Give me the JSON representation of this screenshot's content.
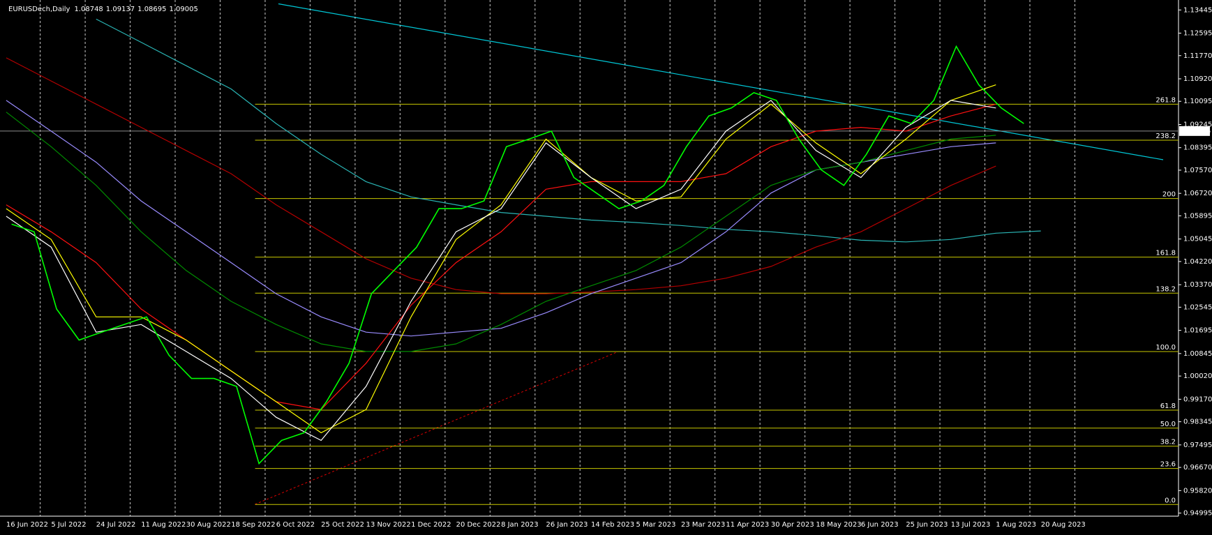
{
  "chart_data": {
    "type": "candlestick",
    "symbol": "EURUSDech,Daily",
    "ohlc": {
      "open": 1.08748,
      "high": 1.09137,
      "low": 1.08695,
      "close": 1.09005
    },
    "categories": [
      "16 Jun 2022",
      "5 Jul 2022",
      "24 Jul 2022",
      "11 Aug 2022",
      "30 Aug 2022",
      "18 Sep 2022",
      "6 Oct 2022",
      "25 Oct 2022",
      "13 Nov 2022",
      "1 Dec 2022",
      "20 Dec 2022",
      "8 Jan 2023",
      "26 Jan 2023",
      "14 Feb 2023",
      "5 Mar 2023",
      "23 Mar 2023",
      "11 Apr 2023",
      "30 Apr 2023",
      "18 May 2023",
      "6 Jun 2023",
      "25 Jun 2023",
      "13 Jul 2023",
      "1 Aug 2023",
      "20 Aug 2023"
    ],
    "closes": {
      "color": "#00ff00",
      "values": [
        1.0559,
        1.0531,
        1.0248,
        1.0134,
        1.0163,
        1.0191,
        1.0219,
        1.0078,
        0.9993,
        0.9993,
        0.9964,
        0.9681,
        0.9766,
        0.9794,
        0.9908,
        1.0049,
        1.0304,
        1.0389,
        1.0474,
        1.0616,
        1.0616,
        1.0644,
        1.0843,
        1.0871,
        1.09,
        1.073,
        1.0673,
        1.0616,
        1.0644,
        1.0701,
        1.0843,
        1.0956,
        1.0985,
        1.1041,
        1.1013,
        1.0871,
        1.0758,
        1.0701,
        1.0815,
        1.0956,
        1.0928,
        1.1013,
        1.1211,
        1.107,
        1.0985,
        1.0928
      ]
    },
    "series": [
      {
        "color": "#2ab4b4",
        "values": [
          null,
          null,
          1.1311,
          1.1226,
          1.114,
          1.1055,
          1.0928,
          1.0815,
          1.0715,
          1.0659,
          1.063,
          1.0602,
          1.0588,
          1.0574,
          1.0565,
          1.0554,
          1.054,
          1.0531,
          1.0517,
          1.05,
          1.0494,
          1.0503,
          1.0526,
          1.0534
        ]
      },
      {
        "color": "#b40000",
        "values": [
          1.1169,
          1.1084,
          1.0999,
          1.0914,
          1.0829,
          1.0744,
          1.063,
          1.0531,
          1.0432,
          1.0361,
          1.0319,
          1.0304,
          1.0304,
          1.031,
          1.0319,
          1.0333,
          1.0361,
          1.0404,
          1.0475,
          1.0531,
          1.0616,
          1.0701,
          1.0772,
          null
        ]
      },
      {
        "color": "#9a8cff",
        "values": [
          1.1013,
          1.09,
          1.0786,
          1.0644,
          1.0531,
          1.0418,
          1.0304,
          1.0219,
          1.0163,
          1.0149,
          1.0163,
          1.0177,
          1.0234,
          1.0304,
          1.0361,
          1.0418,
          1.0531,
          1.0673,
          1.0758,
          1.0786,
          1.0815,
          1.0843,
          1.0857,
          null
        ]
      },
      {
        "color": "#008c00",
        "values": [
          1.097,
          1.0843,
          1.0701,
          1.0531,
          1.0389,
          1.0276,
          1.0191,
          1.012,
          1.0092,
          1.0092,
          1.012,
          1.0191,
          1.0276,
          1.0333,
          1.0389,
          1.0475,
          1.0588,
          1.0701,
          1.0758,
          1.0786,
          1.0829,
          1.0871,
          1.0885,
          null
        ]
      },
      {
        "color": "#ff1010",
        "values": [
          1.063,
          1.0531,
          1.0418,
          1.0248,
          1.0134,
          1.0021,
          0.9908,
          0.9879,
          1.0049,
          1.0262,
          1.0418,
          1.0531,
          1.0687,
          1.0715,
          1.0715,
          1.0715,
          1.0744,
          1.0843,
          1.09,
          1.0914,
          1.09,
          1.0956,
          1.0999,
          null
        ]
      },
      {
        "color": "#ffff00",
        "values": [
          1.0616,
          1.0503,
          1.0219,
          1.0219,
          1.0134,
          1.0021,
          0.9908,
          0.9794,
          0.9879,
          1.0219,
          1.0503,
          1.063,
          1.0871,
          1.073,
          1.0644,
          1.0659,
          1.0871,
          1.0999,
          1.0857,
          1.0744,
          1.0871,
          1.1013,
          1.107,
          null
        ]
      },
      {
        "color": "#ffffff",
        "values": [
          1.0588,
          1.0475,
          1.0163,
          1.0191,
          1.0092,
          0.9993,
          0.9851,
          0.9766,
          0.9964,
          1.0276,
          1.0531,
          1.0616,
          1.0857,
          1.073,
          1.0616,
          1.0687,
          1.09,
          1.1013,
          1.0829,
          1.073,
          1.0914,
          1.1013,
          1.0985,
          null
        ]
      }
    ],
    "fibo": {
      "color": "#c8c800",
      "levels": [
        {
          "label": "0.0",
          "value": 0.9531
        },
        {
          "label": "23.6",
          "value": 0.9663
        },
        {
          "label": "38.2",
          "value": 0.9745
        },
        {
          "label": "50.0",
          "value": 0.9811
        },
        {
          "label": "61.8",
          "value": 0.9877
        },
        {
          "label": "100.0",
          "value": 1.0092
        },
        {
          "label": "138.2",
          "value": 1.0306
        },
        {
          "label": "161.8",
          "value": 1.0438
        },
        {
          "label": "200",
          "value": 1.0653
        },
        {
          "label": "238.2",
          "value": 1.0867
        },
        {
          "label": "261.8",
          "value": 1.0999
        }
      ]
    },
    "ylim": [
      0.94882,
      1.1381
    ],
    "yticks": [
      1.13445,
      1.12595,
      {
        "value": 1.1177,
        "label": "1.11770"
      },
      {
        "value": 1.1092,
        "label": "1.10920"
      },
      1.10095,
      1.09245,
      1.08395,
      {
        "value": 1.0757,
        "label": "1.07570"
      },
      {
        "value": 1.0672,
        "label": "1.06720"
      },
      1.05895,
      1.05045,
      {
        "value": 1.0422,
        "label": "1.04220"
      },
      {
        "value": 1.0337,
        "label": "1.03370"
      },
      1.02545,
      1.01695,
      1.00845,
      {
        "value": 1.0002,
        "label": "1.00020"
      },
      {
        "value": 0.9917,
        "label": "0.99170"
      },
      0.98345,
      0.97495,
      {
        "value": 0.9667,
        "label": "0.96670"
      },
      {
        "value": 0.9582,
        "label": "0.95820"
      },
      0.94995
    ],
    "grid": true
  }
}
